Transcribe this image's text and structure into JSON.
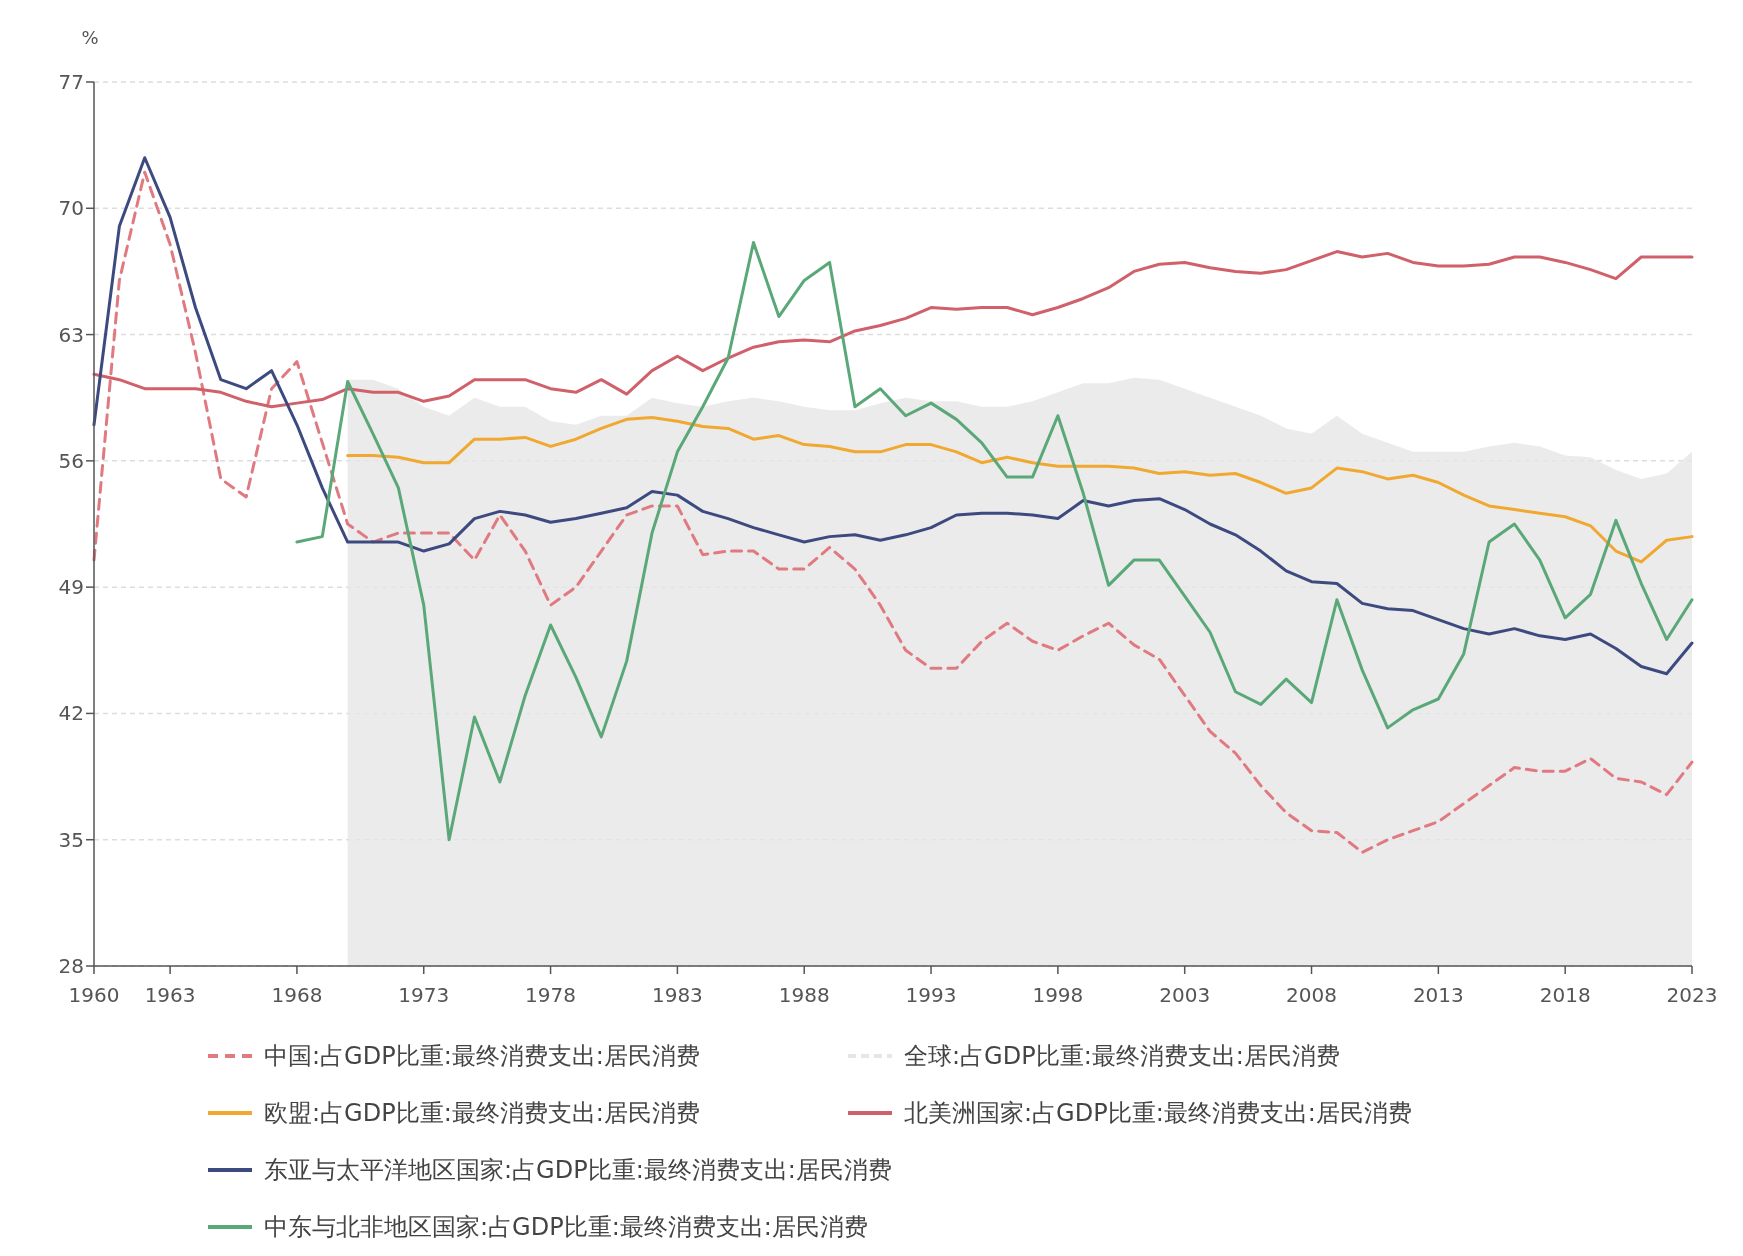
{
  "chart_data": {
    "type": "line",
    "ylabel": "%",
    "x": [
      1960,
      1961,
      1962,
      1963,
      1964,
      1965,
      1966,
      1967,
      1968,
      1969,
      1970,
      1971,
      1972,
      1973,
      1974,
      1975,
      1976,
      1977,
      1978,
      1979,
      1980,
      1981,
      1982,
      1983,
      1984,
      1985,
      1986,
      1987,
      1988,
      1989,
      1990,
      1991,
      1992,
      1993,
      1994,
      1995,
      1996,
      1997,
      1998,
      1999,
      2000,
      2001,
      2002,
      2003,
      2004,
      2005,
      2006,
      2007,
      2008,
      2009,
      2010,
      2011,
      2012,
      2013,
      2014,
      2015,
      2016,
      2017,
      2018,
      2019,
      2020,
      2021,
      2022,
      2023
    ],
    "xlim": [
      1960,
      2023
    ],
    "xticks": [
      1960,
      1963,
      1968,
      1973,
      1978,
      1983,
      1988,
      1993,
      1998,
      2003,
      2008,
      2013,
      2018,
      2023
    ],
    "ylim": [
      28,
      77
    ],
    "yticks": [
      28,
      35,
      42,
      49,
      56,
      63,
      70,
      77
    ],
    "grid": "y",
    "legend": "bottom",
    "series": [
      {
        "name": "中国:占GDP比重:最终消费支出:居民消费",
        "color": "#e07a80",
        "line_style": "dashed",
        "values": [
          50.5,
          66,
          72,
          68,
          62,
          55,
          54,
          60,
          61.5,
          57,
          52.5,
          51.5,
          52,
          52,
          52,
          50.5,
          53,
          51,
          48,
          49,
          51,
          53,
          53.5,
          53.5,
          50.8,
          51,
          51,
          50,
          50,
          51.2,
          50,
          48,
          45.5,
          44.5,
          44.5,
          46,
          47,
          46,
          45.5,
          46.3,
          47,
          45.8,
          45,
          43,
          41,
          39.8,
          38,
          36.5,
          35.5,
          35.4,
          34.3,
          35,
          35.5,
          36,
          37,
          38,
          39,
          38.8,
          38.8,
          39.5,
          38.4,
          38.2,
          37.5,
          39.3
        ]
      },
      {
        "name": "全球:占GDP比重:最终消费支出:居民消费",
        "color": "#e6e6e6",
        "type": "area",
        "values": [
          null,
          null,
          null,
          null,
          null,
          null,
          null,
          null,
          null,
          null,
          60.5,
          60.5,
          60,
          59,
          58.5,
          59.5,
          59,
          59,
          58.2,
          58,
          58.5,
          58.5,
          59.5,
          59.2,
          59,
          59.3,
          59.5,
          59.3,
          59,
          58.8,
          58.8,
          59.2,
          59.5,
          59.3,
          59.3,
          59,
          59,
          59.3,
          59.8,
          60.3,
          60.3,
          60.6,
          60.5,
          60,
          59.5,
          59,
          58.5,
          57.8,
          57.5,
          58.5,
          57.5,
          57,
          56.5,
          56.5,
          56.5,
          56.8,
          57,
          56.8,
          56.3,
          56.2,
          55.5,
          55,
          55.3,
          56.5
        ]
      },
      {
        "name": "欧盟:占GDP比重:最终消费支出:居民消费",
        "color": "#f0a830",
        "values": [
          null,
          null,
          null,
          null,
          null,
          null,
          null,
          null,
          null,
          null,
          56.3,
          56.3,
          56.2,
          55.9,
          55.9,
          57.2,
          57.2,
          57.3,
          56.8,
          57.2,
          57.8,
          58.3,
          58.4,
          58.2,
          57.9,
          57.8,
          57.2,
          57.4,
          56.9,
          56.8,
          56.5,
          56.5,
          56.9,
          56.9,
          56.5,
          55.9,
          56.2,
          55.9,
          55.7,
          55.7,
          55.7,
          55.6,
          55.3,
          55.4,
          55.2,
          55.3,
          54.8,
          54.2,
          54.5,
          55.6,
          55.4,
          55,
          55.2,
          54.8,
          54.1,
          53.5,
          53.3,
          53.1,
          52.9,
          52.4,
          51,
          50.4,
          51.6,
          51.8
        ]
      },
      {
        "name": "北美洲国家:占GDP比重:最终消费支出:居民消费",
        "color": "#d0606a",
        "values": [
          60.8,
          60.5,
          60,
          60,
          60,
          59.8,
          59.3,
          59,
          59.2,
          59.4,
          60,
          59.8,
          59.8,
          59.3,
          59.6,
          60.5,
          60.5,
          60.5,
          60,
          59.8,
          60.5,
          59.7,
          61,
          61.8,
          61,
          61.7,
          62.3,
          62.6,
          62.7,
          62.6,
          63.2,
          63.5,
          63.9,
          64.5,
          64.4,
          64.5,
          64.5,
          64.1,
          64.5,
          65,
          65.6,
          66.5,
          66.9,
          67,
          66.7,
          66.5,
          66.4,
          66.6,
          67.1,
          67.6,
          67.3,
          67.5,
          67,
          66.8,
          66.8,
          66.9,
          67.3,
          67.3,
          67,
          66.6,
          66.1,
          67.3,
          67.3,
          67.3
        ]
      },
      {
        "name": "东亚与太平洋地区国家:占GDP比重:最终消费支出:居民消费",
        "color": "#3d4a80",
        "values": [
          58,
          69,
          72.8,
          69.5,
          64.5,
          60.5,
          60,
          61,
          58,
          54.5,
          51.5,
          51.5,
          51.5,
          51,
          51.4,
          52.8,
          53.2,
          53,
          52.6,
          52.8,
          53.1,
          53.4,
          54.3,
          54.1,
          53.2,
          52.8,
          52.3,
          51.9,
          51.5,
          51.8,
          51.9,
          51.6,
          51.9,
          52.3,
          53,
          53.1,
          53.1,
          53,
          52.8,
          53.8,
          53.5,
          53.8,
          53.9,
          53.3,
          52.5,
          51.9,
          51,
          49.9,
          49.3,
          49.2,
          48.1,
          47.8,
          47.7,
          47.2,
          46.7,
          46.4,
          46.7,
          46.3,
          46.1,
          46.4,
          45.6,
          44.6,
          44.2,
          45.9
        ]
      },
      {
        "name": "中东与北非地区国家:占GDP比重:最终消费支出:居民消费",
        "color": "#5aa878",
        "values": [
          null,
          null,
          null,
          null,
          null,
          null,
          null,
          null,
          51.5,
          51.8,
          60.4,
          57.5,
          54.5,
          48,
          35,
          41.8,
          38.2,
          43,
          46.9,
          44,
          40.7,
          44.9,
          52,
          56.5,
          59,
          61.7,
          68.1,
          64,
          66,
          67,
          59,
          60,
          58.5,
          59.2,
          58.3,
          57,
          55.1,
          55.1,
          58.5,
          54.2,
          49.1,
          50.5,
          50.5,
          48.5,
          46.5,
          43.2,
          42.5,
          43.9,
          42.6,
          48.3,
          44.4,
          41.2,
          42.2,
          42.8,
          45.3,
          51.5,
          52.5,
          50.5,
          47.3,
          48.6,
          52.7,
          49.2,
          46.1,
          48.3
        ]
      }
    ]
  }
}
